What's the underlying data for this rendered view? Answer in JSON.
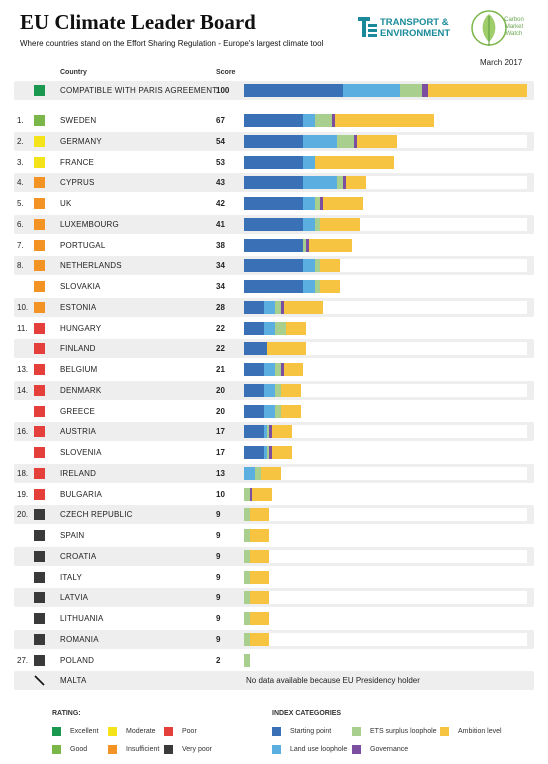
{
  "header": {
    "title": "EU Climate Leader Board",
    "subtitle": "Where countries stand on the Effort Sharing Regulation - Europe's largest climate tool",
    "date": "March 2017",
    "col_country": "Country",
    "col_score": "Score"
  },
  "logos": {
    "te_line1": "TRANSPORT &",
    "te_line2": "ENVIRONMENT",
    "cmw_line1": "Carbon",
    "cmw_line2": "Market",
    "cmw_line3": "Watch"
  },
  "colors": {
    "rating": {
      "excellent": "#1a9850",
      "good": "#7ab648",
      "moderate": "#f5e31a",
      "insufficient": "#f39324",
      "poor": "#e43f3a",
      "very_poor": "#3a3a3a"
    },
    "index": {
      "starting_point": "#3a70b5",
      "land_use_loophole": "#5baee0",
      "ets_surplus_loophole": "#a9cf8e",
      "governance": "#7b4ea0",
      "ambition_level": "#f7c442"
    }
  },
  "chart_data": {
    "type": "bar",
    "orientation": "horizontal",
    "stacked": true,
    "xlim": [
      0,
      100
    ],
    "series_names": [
      "Starting point",
      "Land use loophole",
      "ETS surplus loophole",
      "Governance",
      "Ambition level"
    ],
    "rows": [
      {
        "rank": "",
        "country": "COMPATIBLE WITH PARIS AGREEMENT",
        "score": 100,
        "rating": "excellent",
        "segments": [
          35,
          20,
          8,
          2,
          35
        ]
      },
      {
        "rank": "1.",
        "country": "SWEDEN",
        "score": 67,
        "rating": "good",
        "segments": [
          21,
          4,
          6,
          1,
          35
        ]
      },
      {
        "rank": "2.",
        "country": "GERMANY",
        "score": 54,
        "rating": "moderate",
        "segments": [
          21,
          12,
          6,
          1,
          14
        ]
      },
      {
        "rank": "3.",
        "country": "FRANCE",
        "score": 53,
        "rating": "moderate",
        "segments": [
          21,
          4,
          0,
          0,
          28
        ]
      },
      {
        "rank": "4.",
        "country": "CYPRUS",
        "score": 43,
        "rating": "insufficient",
        "segments": [
          21,
          12,
          2,
          1,
          7
        ]
      },
      {
        "rank": "5.",
        "country": "UK",
        "score": 42,
        "rating": "insufficient",
        "segments": [
          21,
          4,
          2,
          1,
          14
        ]
      },
      {
        "rank": "6.",
        "country": "LUXEMBOURG",
        "score": 41,
        "rating": "insufficient",
        "segments": [
          21,
          4,
          2,
          0,
          14
        ]
      },
      {
        "rank": "7.",
        "country": "PORTUGAL",
        "score": 38,
        "rating": "insufficient",
        "segments": [
          21,
          0,
          1,
          1,
          15
        ]
      },
      {
        "rank": "8.",
        "country": "NETHERLANDS",
        "score": 34,
        "rating": "insufficient",
        "segments": [
          21,
          4,
          2,
          0,
          7
        ]
      },
      {
        "rank": "",
        "country": "SLOVAKIA",
        "score": 34,
        "rating": "insufficient",
        "segments": [
          21,
          4,
          2,
          0,
          7
        ]
      },
      {
        "rank": "10.",
        "country": "ESTONIA",
        "score": 28,
        "rating": "insufficient",
        "segments": [
          7,
          4,
          2,
          1,
          14
        ]
      },
      {
        "rank": "11.",
        "country": "HUNGARY",
        "score": 22,
        "rating": "poor",
        "segments": [
          7,
          4,
          4,
          0,
          7
        ]
      },
      {
        "rank": "",
        "country": "FINLAND",
        "score": 22,
        "rating": "poor",
        "segments": [
          8,
          0,
          0,
          0,
          14
        ]
      },
      {
        "rank": "13.",
        "country": "BELGIUM",
        "score": 21,
        "rating": "poor",
        "segments": [
          7,
          4,
          2,
          1,
          7
        ]
      },
      {
        "rank": "14.",
        "country": "DENMARK",
        "score": 20,
        "rating": "poor",
        "segments": [
          7,
          4,
          2,
          0,
          7
        ]
      },
      {
        "rank": "",
        "country": "GREECE",
        "score": 20,
        "rating": "poor",
        "segments": [
          7,
          4,
          2,
          0,
          7
        ]
      },
      {
        "rank": "16.",
        "country": "AUSTRIA",
        "score": 17,
        "rating": "poor",
        "segments": [
          7,
          1,
          1,
          1,
          7
        ]
      },
      {
        "rank": "",
        "country": "SLOVENIA",
        "score": 17,
        "rating": "poor",
        "segments": [
          7,
          1,
          1,
          1,
          7
        ]
      },
      {
        "rank": "18.",
        "country": "IRELAND",
        "score": 13,
        "rating": "poor",
        "segments": [
          0,
          4,
          2,
          0,
          7
        ]
      },
      {
        "rank": "19.",
        "country": "BULGARIA",
        "score": 10,
        "rating": "poor",
        "segments": [
          0,
          0,
          2,
          1,
          7
        ]
      },
      {
        "rank": "20.",
        "country": "CZECH REPUBLIC",
        "score": 9,
        "rating": "very_poor",
        "segments": [
          0,
          0,
          2,
          0,
          7
        ]
      },
      {
        "rank": "",
        "country": "SPAIN",
        "score": 9,
        "rating": "very_poor",
        "segments": [
          0,
          0,
          2,
          0,
          7
        ]
      },
      {
        "rank": "",
        "country": "CROATIA",
        "score": 9,
        "rating": "very_poor",
        "segments": [
          0,
          0,
          2,
          0,
          7
        ]
      },
      {
        "rank": "",
        "country": "ITALY",
        "score": 9,
        "rating": "very_poor",
        "segments": [
          0,
          0,
          2,
          0,
          7
        ]
      },
      {
        "rank": "",
        "country": "LATVIA",
        "score": 9,
        "rating": "very_poor",
        "segments": [
          0,
          0,
          2,
          0,
          7
        ]
      },
      {
        "rank": "",
        "country": "LITHUANIA",
        "score": 9,
        "rating": "very_poor",
        "segments": [
          0,
          0,
          2,
          0,
          7
        ]
      },
      {
        "rank": "",
        "country": "ROMANIA",
        "score": 9,
        "rating": "very_poor",
        "segments": [
          0,
          0,
          2,
          0,
          7
        ]
      },
      {
        "rank": "27.",
        "country": "POLAND",
        "score": 2,
        "rating": "very_poor",
        "segments": [
          0,
          0,
          2,
          0,
          0
        ]
      },
      {
        "rank": "",
        "country": "MALTA",
        "score": null,
        "rating": "none",
        "segments": [],
        "note": "No data available because EU Presidency holder"
      }
    ]
  },
  "legend": {
    "rating_title": "RATING:",
    "index_title": "INDEX CATEGORIES",
    "ratings": [
      {
        "key": "excellent",
        "label": "Excellent"
      },
      {
        "key": "moderate",
        "label": "Moderate"
      },
      {
        "key": "poor",
        "label": "Poor"
      },
      {
        "key": "good",
        "label": "Good"
      },
      {
        "key": "insufficient",
        "label": "Insufficient"
      },
      {
        "key": "very_poor",
        "label": "Very poor"
      }
    ],
    "categories": [
      {
        "key": "starting_point",
        "label": "Starting point"
      },
      {
        "key": "ets_surplus_loophole",
        "label": "ETS surplus loophole"
      },
      {
        "key": "ambition_level",
        "label": "Ambition level"
      },
      {
        "key": "land_use_loophole",
        "label": "Land use loophole"
      },
      {
        "key": "governance",
        "label": "Governance"
      }
    ]
  }
}
